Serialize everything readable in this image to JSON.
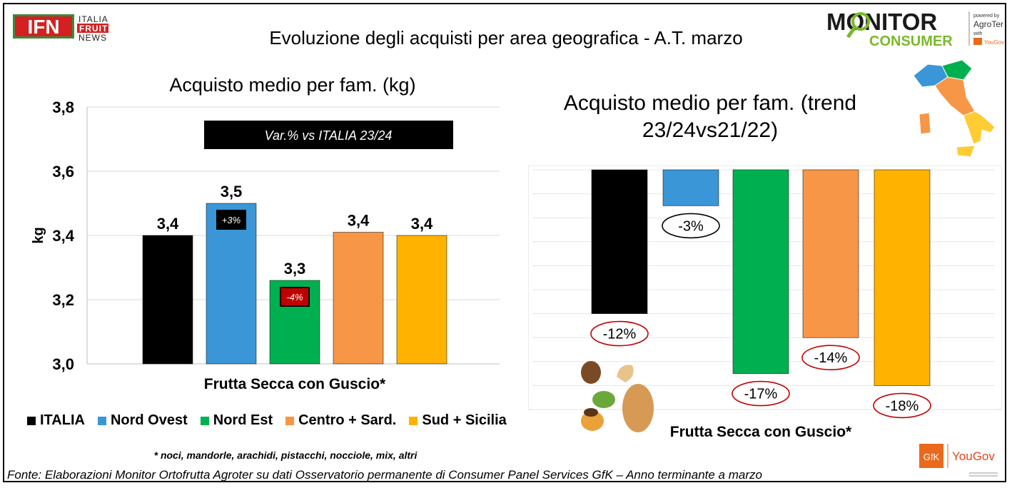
{
  "header": {
    "main_title": "Evoluzione degli acquisti per area geografica - A.T. marzo",
    "ifn_logo": {
      "big": "IFN",
      "lines": [
        "ITALIA",
        "FRUIT",
        "NEWS"
      ]
    },
    "monitor_logo": {
      "line1": "MONITOR",
      "line2": "CONSUMER",
      "powered": "powered by",
      "brand": "AgroTer",
      "with": "with"
    },
    "gfk_logo": {
      "gfk": "GfK",
      "yougov": "YouGov"
    }
  },
  "colors": {
    "italia": "#000000",
    "nord_ovest": "#3a96d6",
    "nord_est": "#00b050",
    "centro": "#f79646",
    "sud": "#ffb300",
    "note_red": "#c00000"
  },
  "chart_data": [
    {
      "type": "bar",
      "title": "Acquisto medio per fam. (kg)",
      "xlabel": "Frutta Secca con Guscio*",
      "ylabel": "kg",
      "ylim": [
        3.0,
        3.8
      ],
      "yticks": [
        "3,0",
        "3,2",
        "3,4",
        "3,6",
        "3,8"
      ],
      "ytick_values": [
        3.0,
        3.2,
        3.4,
        3.6,
        3.8
      ],
      "grid": true,
      "categories": [
        "ITALIA",
        "Nord Ovest",
        "Nord Est",
        "Centro + Sard.",
        "Sud + Sicilia"
      ],
      "values": [
        3.4,
        3.5,
        3.26,
        3.41,
        3.4
      ],
      "data_labels": [
        "3,4",
        "3,5",
        "3,3",
        "3,4",
        "3,4"
      ],
      "annotation_box": "Var.% vs ITALIA 23/24",
      "var_labels": [
        "",
        "+3%",
        "-4%",
        "",
        ""
      ],
      "legend": "bottom"
    },
    {
      "type": "bar",
      "title": "Acquisto medio per fam. (trend 23/24vs21/22)",
      "xlabel": "Frutta Secca con Guscio*",
      "ylim": [
        -0.2,
        0
      ],
      "grid": true,
      "categories": [
        "ITALIA",
        "Nord Ovest",
        "Nord Est",
        "Centro + Sard.",
        "Sud + Sicilia"
      ],
      "values": [
        -12,
        -3,
        -17,
        -14,
        -18
      ],
      "data_labels": [
        "-12%",
        "-3%",
        "-17%",
        "-14%",
        "-18%"
      ]
    }
  ],
  "footnote": "* noci, mandorle, arachidi,  pistacchi,  nocciole, mix, altri",
  "source": "Fonte: Elaborazioni Monitor Ortofrutta Agroter su dati Osservatorio permanente di Consumer Panel Services GfK – Anno terminante a marzo"
}
